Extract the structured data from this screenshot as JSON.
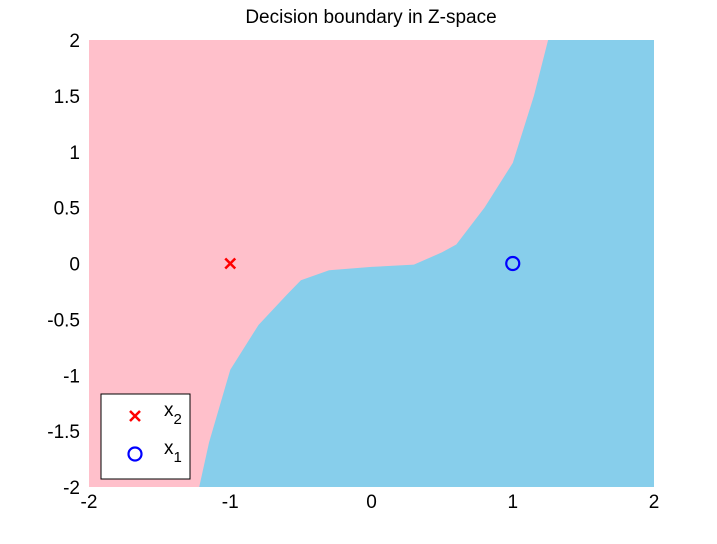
{
  "chart_data": {
    "type": "scatter",
    "title": "Decision boundary in Z-space",
    "xlabel": "",
    "ylabel": "",
    "xlim": [
      -2,
      2
    ],
    "ylim": [
      -2,
      2
    ],
    "x_ticks": [
      "-2",
      "-1",
      "0",
      "1",
      "2"
    ],
    "y_ticks": [
      "2",
      "1.5",
      "1",
      "0.5",
      "0",
      "-0.5",
      "-1",
      "-1.5",
      "-2"
    ],
    "grid": false,
    "regions": [
      {
        "class": "x2",
        "color": "#FFC0CB",
        "side": "upper-left of boundary"
      },
      {
        "class": "x1",
        "color": "#87CEEB",
        "side": "lower-right of boundary"
      }
    ],
    "boundary": {
      "x": [
        -1.22,
        -1.15,
        -1.0,
        -0.8,
        -0.6,
        -0.5,
        -0.3,
        0.0,
        0.3,
        0.5,
        0.6,
        0.8,
        1.0,
        1.15,
        1.25
      ],
      "y": [
        -2.0,
        -1.6,
        -0.95,
        -0.55,
        -0.28,
        -0.15,
        -0.06,
        -0.03,
        -0.01,
        0.1,
        0.17,
        0.5,
        0.9,
        1.5,
        2.0
      ]
    },
    "series": [
      {
        "name": "x_2",
        "marker": "x",
        "color": "#FF0000",
        "points": [
          [
            -1,
            0
          ]
        ]
      },
      {
        "name": "x_1",
        "marker": "o",
        "color": "#0000FF",
        "points": [
          [
            1,
            0
          ]
        ]
      }
    ],
    "legend": {
      "placement": "bottom-left",
      "entries": [
        {
          "main": "x",
          "sub": "2",
          "marker": "x",
          "color": "#FF0000"
        },
        {
          "main": "x",
          "sub": "1",
          "marker": "o",
          "color": "#0000FF"
        }
      ]
    }
  }
}
